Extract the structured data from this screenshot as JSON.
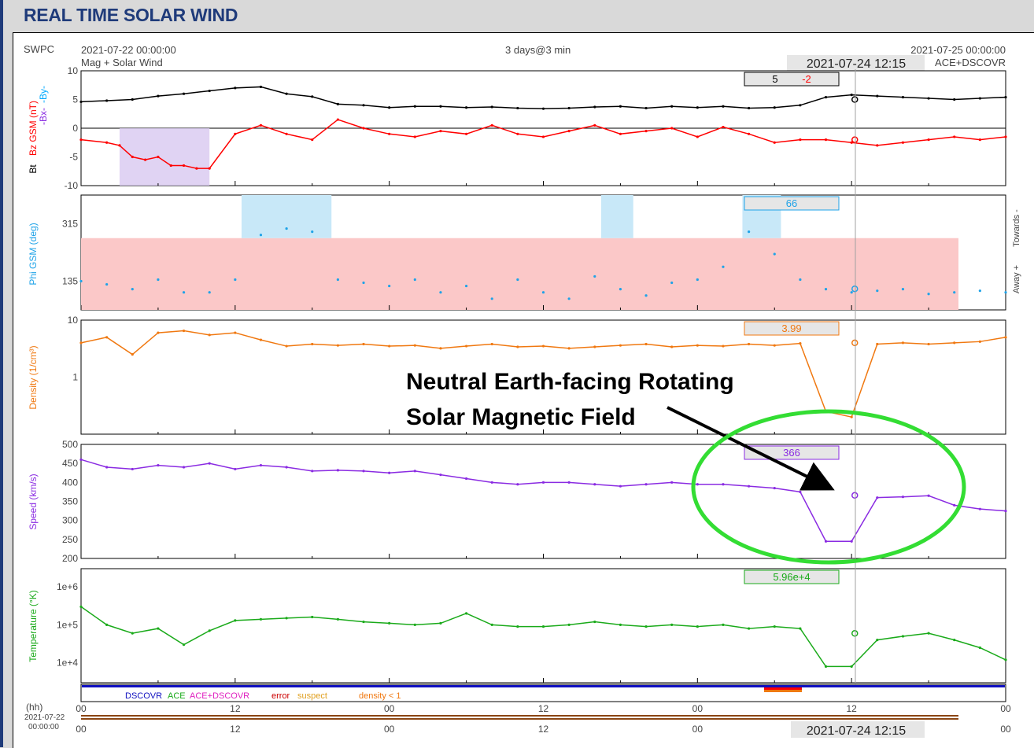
{
  "header": {
    "title": "REAL TIME SOLAR WIND"
  },
  "info": {
    "source": "SWPC",
    "start": "2021-07-22 00:00:00",
    "subtitle": "Mag + Solar Wind",
    "span": "3 days@3 min",
    "end": "2021-07-25 00:00:00",
    "satellite": "ACE+DSCOVR",
    "cursor_time": "2021-07-24 12:15"
  },
  "annotation": {
    "line1": "Neutral Earth-facing Rotating",
    "line2": "Solar Magnetic Field"
  },
  "colors": {
    "bt": "#000000",
    "bz": "#ff0000",
    "bx": "#8a2be2",
    "by": "#00aaff",
    "phi": "#1fa3e8",
    "density": "#f07810",
    "speed": "#8a2be2",
    "temperature": "#1aaa1a",
    "ellipse": "#33dd33"
  },
  "chart_data": [
    {
      "type": "line",
      "panel": "mag",
      "ylabel_bt": "Bt",
      "ylabel_bz": "Bz GSM (nT)",
      "ylabel_bx": "-Bx-",
      "ylabel_by": "-By-",
      "ylim": [
        -10,
        10
      ],
      "yticks": [
        "10",
        "5",
        "0",
        "-5",
        "-10"
      ],
      "readout_bt": "5",
      "readout_bz": "-2",
      "series": [
        {
          "name": "Bt",
          "x": [
            0,
            2,
            4,
            6,
            8,
            10,
            12,
            14,
            16,
            18,
            20,
            22,
            24,
            26,
            28,
            30,
            32,
            34,
            36,
            38,
            40,
            42,
            44,
            46,
            48,
            50,
            52,
            54,
            56,
            58,
            60,
            62,
            64,
            66,
            68,
            70,
            72
          ],
          "values": [
            4.6,
            4.8,
            5.0,
            5.6,
            6.0,
            6.5,
            7.0,
            7.2,
            6.0,
            5.5,
            4.2,
            4.0,
            3.6,
            3.8,
            3.8,
            3.6,
            3.7,
            3.5,
            3.4,
            3.5,
            3.7,
            3.8,
            3.5,
            3.8,
            3.6,
            3.8,
            3.5,
            3.6,
            4.0,
            5.4,
            5.8,
            5.6,
            5.4,
            5.2,
            5.0,
            5.2,
            5.4
          ]
        },
        {
          "name": "Bz",
          "x": [
            0,
            2,
            3,
            4,
            5,
            6,
            7,
            8,
            9,
            10,
            12,
            14,
            16,
            18,
            20,
            22,
            24,
            26,
            28,
            30,
            32,
            34,
            36,
            38,
            40,
            42,
            44,
            46,
            48,
            50,
            52,
            54,
            56,
            58,
            60,
            62,
            64,
            66,
            68,
            70,
            72
          ],
          "values": [
            -2.0,
            -2.5,
            -3.0,
            -5.0,
            -5.5,
            -5.0,
            -6.5,
            -6.5,
            -7.0,
            -7.0,
            -1.0,
            0.5,
            -1.0,
            -2.0,
            1.5,
            0.0,
            -1.0,
            -1.5,
            -0.5,
            -1.0,
            0.5,
            -1.0,
            -1.5,
            -0.5,
            0.5,
            -1.0,
            -0.5,
            0.0,
            -1.5,
            0.2,
            -1.0,
            -2.5,
            -2.0,
            -2.0,
            -2.5,
            -3.0,
            -2.5,
            -2.0,
            -1.5,
            -2.0,
            -1.5
          ]
        }
      ]
    },
    {
      "type": "scatter",
      "panel": "phi",
      "ylabel": "Phi GSM (deg)",
      "yticks": [
        "315",
        "135"
      ],
      "right_labels": {
        "towards": "Towards -",
        "away": "Away +"
      },
      "readout": "66",
      "series": [
        {
          "name": "Phi",
          "x": [
            0,
            2,
            4,
            6,
            8,
            10,
            12,
            14,
            16,
            18,
            20,
            22,
            24,
            26,
            28,
            30,
            32,
            34,
            36,
            38,
            40,
            42,
            44,
            46,
            48,
            50,
            52,
            54,
            56,
            58,
            60,
            62,
            64,
            66,
            68,
            70,
            72
          ],
          "values": [
            135,
            125,
            110,
            140,
            100,
            100,
            140,
            280,
            300,
            290,
            140,
            130,
            120,
            140,
            100,
            120,
            80,
            140,
            100,
            80,
            150,
            110,
            90,
            130,
            140,
            180,
            290,
            220,
            140,
            110,
            100,
            105,
            110,
            95,
            100,
            105,
            100
          ]
        }
      ]
    },
    {
      "type": "line",
      "panel": "density",
      "ylabel": "Density (1/cm³)",
      "yscale": "log",
      "yticks": [
        "10",
        "1"
      ],
      "readout": "3.99",
      "series": [
        {
          "name": "Density",
          "x": [
            0,
            2,
            4,
            6,
            8,
            10,
            12,
            14,
            16,
            18,
            20,
            22,
            24,
            26,
            28,
            30,
            32,
            34,
            36,
            38,
            40,
            42,
            44,
            46,
            48,
            50,
            52,
            54,
            56,
            58,
            60,
            62,
            64,
            66,
            68,
            70,
            72
          ],
          "values": [
            4.0,
            5.0,
            2.5,
            6.0,
            6.5,
            5.5,
            6.0,
            4.5,
            3.5,
            3.8,
            3.6,
            3.8,
            3.5,
            3.6,
            3.2,
            3.5,
            3.8,
            3.4,
            3.5,
            3.2,
            3.4,
            3.6,
            3.8,
            3.4,
            3.6,
            3.5,
            3.8,
            3.6,
            3.9,
            0.25,
            0.2,
            3.8,
            4.0,
            3.8,
            4.0,
            4.2,
            5.0
          ]
        }
      ]
    },
    {
      "type": "line",
      "panel": "speed",
      "ylabel": "Speed (km/s)",
      "ylim": [
        200,
        500
      ],
      "yticks": [
        "500",
        "450",
        "400",
        "350",
        "300",
        "250",
        "200"
      ],
      "readout": "366",
      "series": [
        {
          "name": "Speed",
          "x": [
            0,
            2,
            4,
            6,
            8,
            10,
            12,
            14,
            16,
            18,
            20,
            22,
            24,
            26,
            28,
            30,
            32,
            34,
            36,
            38,
            40,
            42,
            44,
            46,
            48,
            50,
            52,
            54,
            56,
            58,
            60,
            62,
            64,
            66,
            68,
            70,
            72
          ],
          "values": [
            460,
            440,
            435,
            445,
            440,
            450,
            435,
            445,
            440,
            430,
            432,
            430,
            425,
            430,
            420,
            410,
            400,
            395,
            400,
            400,
            395,
            390,
            395,
            400,
            395,
            395,
            390,
            385,
            375,
            245,
            245,
            360,
            362,
            365,
            340,
            330,
            325
          ]
        }
      ]
    },
    {
      "type": "line",
      "panel": "temperature",
      "ylabel": "Temperature (°K)",
      "yscale": "log",
      "yticks": [
        "1e+6",
        "1e+5",
        "1e+4"
      ],
      "readout": "5.96e+4",
      "series": [
        {
          "name": "Temperature",
          "x": [
            0,
            2,
            4,
            6,
            8,
            10,
            12,
            14,
            16,
            18,
            20,
            22,
            24,
            26,
            28,
            30,
            32,
            34,
            36,
            38,
            40,
            42,
            44,
            46,
            48,
            50,
            52,
            54,
            56,
            58,
            60,
            62,
            64,
            66,
            68,
            70,
            72
          ],
          "values": [
            300000,
            100000,
            60000,
            80000,
            30000,
            70000,
            130000,
            140000,
            150000,
            160000,
            140000,
            120000,
            110000,
            100000,
            110000,
            200000,
            100000,
            90000,
            90000,
            100000,
            120000,
            100000,
            90000,
            100000,
            90000,
            100000,
            80000,
            90000,
            80000,
            8000,
            8000,
            40000,
            50000,
            60000,
            40000,
            25000,
            12000
          ]
        }
      ]
    }
  ],
  "legend": {
    "dscovr": "DSCOVR",
    "ace": "ACE",
    "ace_dscovr": "ACE+DSCOVR",
    "error": "error",
    "suspect": "suspect",
    "density": "density < 1"
  },
  "time_axis": {
    "label": "(hh)",
    "date": "2021-07-22",
    "time": "00:00:00",
    "ticks": [
      "00",
      "12",
      "00",
      "12",
      "00",
      "12",
      "00"
    ]
  }
}
